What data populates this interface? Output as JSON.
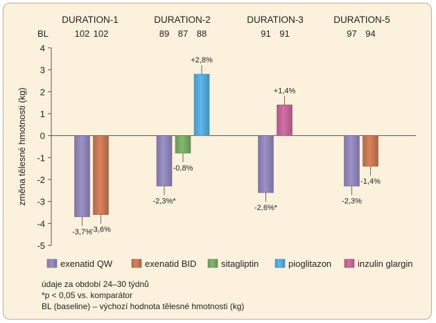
{
  "chart_data": {
    "type": "bar",
    "ylabel": "změna tělesné hmotnosti (kg)",
    "ylim": [
      -5,
      4
    ],
    "yticks": [
      -5,
      -4,
      -3,
      -2,
      -1,
      0,
      1,
      2,
      3,
      4
    ],
    "baseline_label": "BL",
    "grid": false,
    "legend_position": "bottom",
    "groups": [
      {
        "name": "DURATION-1",
        "bars": [
          {
            "series": "exenatid QW",
            "value": -3.7,
            "label": "-3,7%"
          },
          {
            "series": "exenatid BID",
            "value": -3.6,
            "label": "-3,6%"
          }
        ],
        "baselines": [
          "102",
          "102"
        ]
      },
      {
        "name": "DURATION-2",
        "bars": [
          {
            "series": "exenatid QW",
            "value": -2.3,
            "label": "-2,3%*"
          },
          {
            "series": "sitagliptin",
            "value": -0.8,
            "label": "-0,8%"
          },
          {
            "series": "pioglitazon",
            "value": 2.8,
            "label": "+2,8%"
          }
        ],
        "baselines": [
          "89",
          "87",
          "88"
        ]
      },
      {
        "name": "DURATION-3",
        "bars": [
          {
            "series": "exenatid QW",
            "value": -2.6,
            "label": "-2,6%*"
          },
          {
            "series": "inzulin glargin",
            "value": 1.4,
            "label": "+1,4%"
          }
        ],
        "baselines": [
          "91",
          "91"
        ]
      },
      {
        "name": "DURATION-5",
        "bars": [
          {
            "series": "exenatid QW",
            "value": -2.3,
            "label": "-2,3%"
          },
          {
            "series": "exenatid BID",
            "value": -1.4,
            "label": "-1,4%"
          }
        ],
        "baselines": [
          "97",
          "94"
        ]
      }
    ],
    "series": [
      {
        "name": "exenatid QW",
        "color": "#9c91c8"
      },
      {
        "name": "exenatid BID",
        "color": "#d9825a"
      },
      {
        "name": "sitagliptin",
        "color": "#82b86e"
      },
      {
        "name": "pioglitazon",
        "color": "#5ab9ec"
      },
      {
        "name": "inzulin glargin",
        "color": "#d36fa4"
      }
    ]
  },
  "notes": {
    "line1": "údaje za období 24–30 týdnů",
    "line2": "*p < 0,05 vs. komparátor",
    "line3": "BL (baseline) – výchozí hodnota tělesné hmotnosti (kg)"
  }
}
